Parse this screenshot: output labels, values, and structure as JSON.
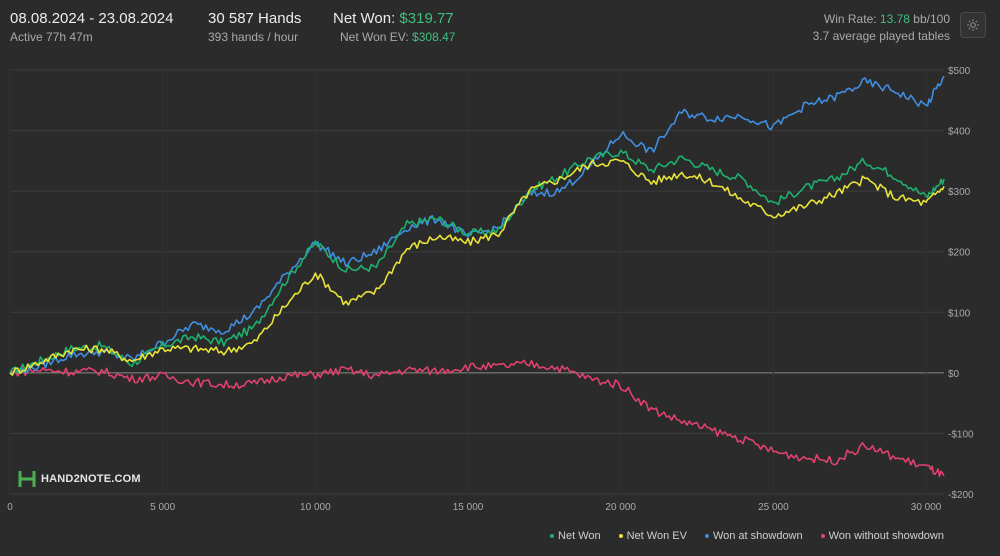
{
  "header": {
    "date_range": "08.08.2024 - 23.08.2024",
    "active": "Active 77h 47m",
    "hands": "30 587 Hands",
    "hands_per_hour": "393 hands / hour",
    "net_won_label": "Net Won:",
    "net_won_value": "$319.77",
    "net_won_ev_label": "Net Won  EV:",
    "net_won_ev_value": "$308.47",
    "win_rate_label": "Win Rate:",
    "win_rate_value": "13.78",
    "win_rate_unit": "bb/100",
    "tables": "3.7 average played tables"
  },
  "logo": {
    "text": "HAND2NOTE.COM"
  },
  "icons": {
    "settings": "gear-icon",
    "logo": "hand2note-logo-icon"
  },
  "chart_data": {
    "type": "line",
    "xlim": [
      0,
      30587
    ],
    "ylim": [
      -200,
      500
    ],
    "x_ticks": [
      0,
      5000,
      10000,
      15000,
      20000,
      25000,
      30000
    ],
    "x_tick_labels": [
      "0",
      "5 000",
      "10 000",
      "15 000",
      "20 000",
      "25 000",
      "30 000"
    ],
    "y_ticks": [
      500,
      400,
      300,
      200,
      100,
      0,
      -100,
      -200
    ],
    "y_tick_labels": [
      "$500",
      "$400",
      "$300",
      "$200",
      "$100",
      "$0",
      "-$100",
      "-$200"
    ],
    "grid": true,
    "legend": "bottom-right",
    "x": [
      0,
      1000,
      2000,
      3000,
      4000,
      5000,
      6000,
      7000,
      8000,
      9000,
      10000,
      11000,
      12000,
      13000,
      14000,
      15000,
      16000,
      17000,
      18000,
      19000,
      20000,
      21000,
      22000,
      23000,
      24000,
      25000,
      26000,
      27000,
      28000,
      29000,
      30000,
      30587
    ],
    "series": [
      {
        "name": "Net Won",
        "color": "#1db16d",
        "values": [
          0,
          20,
          40,
          45,
          15,
          45,
          60,
          50,
          75,
          150,
          215,
          170,
          175,
          245,
          255,
          230,
          235,
          300,
          325,
          355,
          365,
          335,
          355,
          335,
          320,
          280,
          305,
          320,
          350,
          325,
          290,
          320
        ]
      },
      {
        "name": "Net Won  EV",
        "color": "#e8e337",
        "values": [
          0,
          18,
          38,
          40,
          20,
          40,
          40,
          35,
          50,
          110,
          165,
          115,
          135,
          205,
          225,
          215,
          230,
          300,
          320,
          345,
          350,
          315,
          330,
          315,
          285,
          260,
          275,
          295,
          320,
          290,
          280,
          308
        ]
      },
      {
        "name": "Won at showdown",
        "color": "#3f8ee0",
        "values": [
          0,
          12,
          30,
          35,
          22,
          50,
          80,
          70,
          100,
          160,
          215,
          180,
          200,
          240,
          255,
          225,
          240,
          295,
          300,
          340,
          395,
          365,
          430,
          420,
          425,
          405,
          440,
          455,
          480,
          465,
          440,
          490
        ]
      },
      {
        "name": "Won without showdown",
        "color": "#e0416e",
        "values": [
          0,
          5,
          2,
          3,
          -10,
          -5,
          -15,
          -20,
          -18,
          -5,
          -3,
          5,
          -5,
          5,
          3,
          10,
          10,
          15,
          8,
          -10,
          -20,
          -60,
          -80,
          -95,
          -110,
          -130,
          -140,
          -145,
          -120,
          -140,
          -155,
          -170
        ]
      }
    ]
  }
}
